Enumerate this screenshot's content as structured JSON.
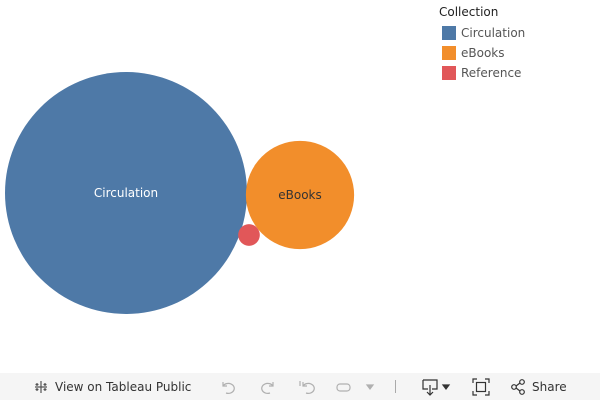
{
  "chart_data": {
    "type": "packed-bubble",
    "legend": {
      "title": "Collection",
      "placement": "top-right"
    },
    "series": [
      {
        "name": "Circulation",
        "relative_size": 100,
        "color": "#4e79a7",
        "label_color": "#ffffff"
      },
      {
        "name": "eBooks",
        "relative_size": 20,
        "color": "#f28e2b",
        "label_color": "#333333"
      },
      {
        "name": "Reference",
        "relative_size": 0.8,
        "color": "#e15759",
        "label_color": "#333333"
      }
    ]
  },
  "toolbar": {
    "view_label": "View on Tableau Public",
    "share_label": "Share"
  }
}
